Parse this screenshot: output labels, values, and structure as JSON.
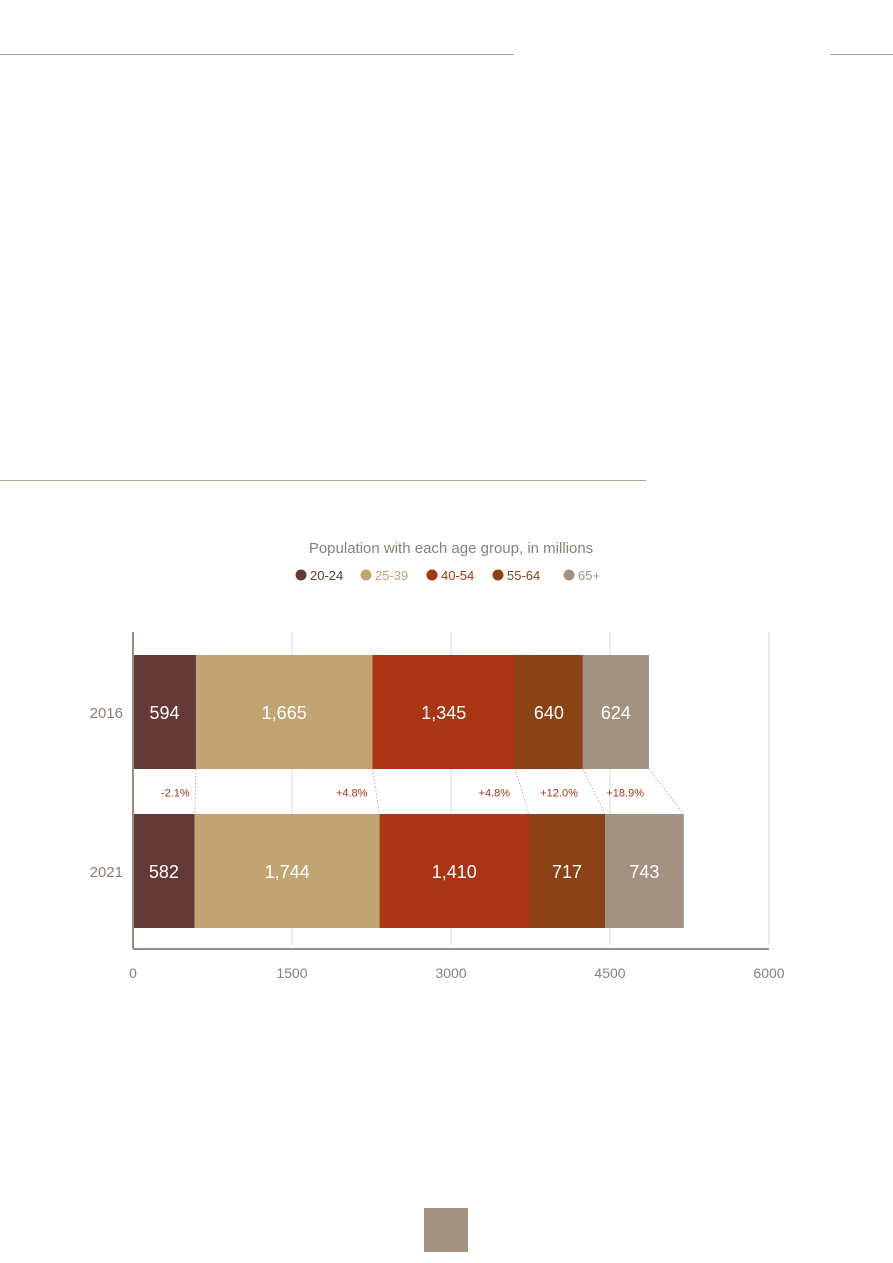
{
  "chart_data": {
    "type": "bar",
    "orientation": "horizontal",
    "stacked": true,
    "title": "Population with each age group, in millions",
    "categories": [
      "2016",
      "2021"
    ],
    "series": [
      {
        "name": "20-24",
        "color": "#633a36",
        "values": [
          594,
          582
        ],
        "labels": [
          "594",
          "582"
        ]
      },
      {
        "name": "25-39",
        "color": "#c2a473",
        "values": [
          1665,
          1744
        ],
        "labels": [
          "1,665",
          "1,744"
        ]
      },
      {
        "name": "40-54",
        "color": "#a93515",
        "values": [
          1345,
          1410
        ],
        "labels": [
          "1,345",
          "1,410"
        ]
      },
      {
        "name": "55-64",
        "color": "#8a4216",
        "values": [
          640,
          717
        ],
        "labels": [
          "640",
          "717"
        ]
      },
      {
        "name": "65+",
        "color": "#a39282",
        "values": [
          624,
          743
        ],
        "labels": [
          "624",
          "743"
        ]
      }
    ],
    "changes": [
      "-2.1%",
      "+4.8%",
      "+4.8%",
      "+12.0%",
      "+18.9%"
    ],
    "xlim": [
      0,
      6000
    ],
    "xticks": [
      "0",
      "1500",
      "3000",
      "4500",
      "6000"
    ],
    "legend_position": "top",
    "grid": true
  }
}
